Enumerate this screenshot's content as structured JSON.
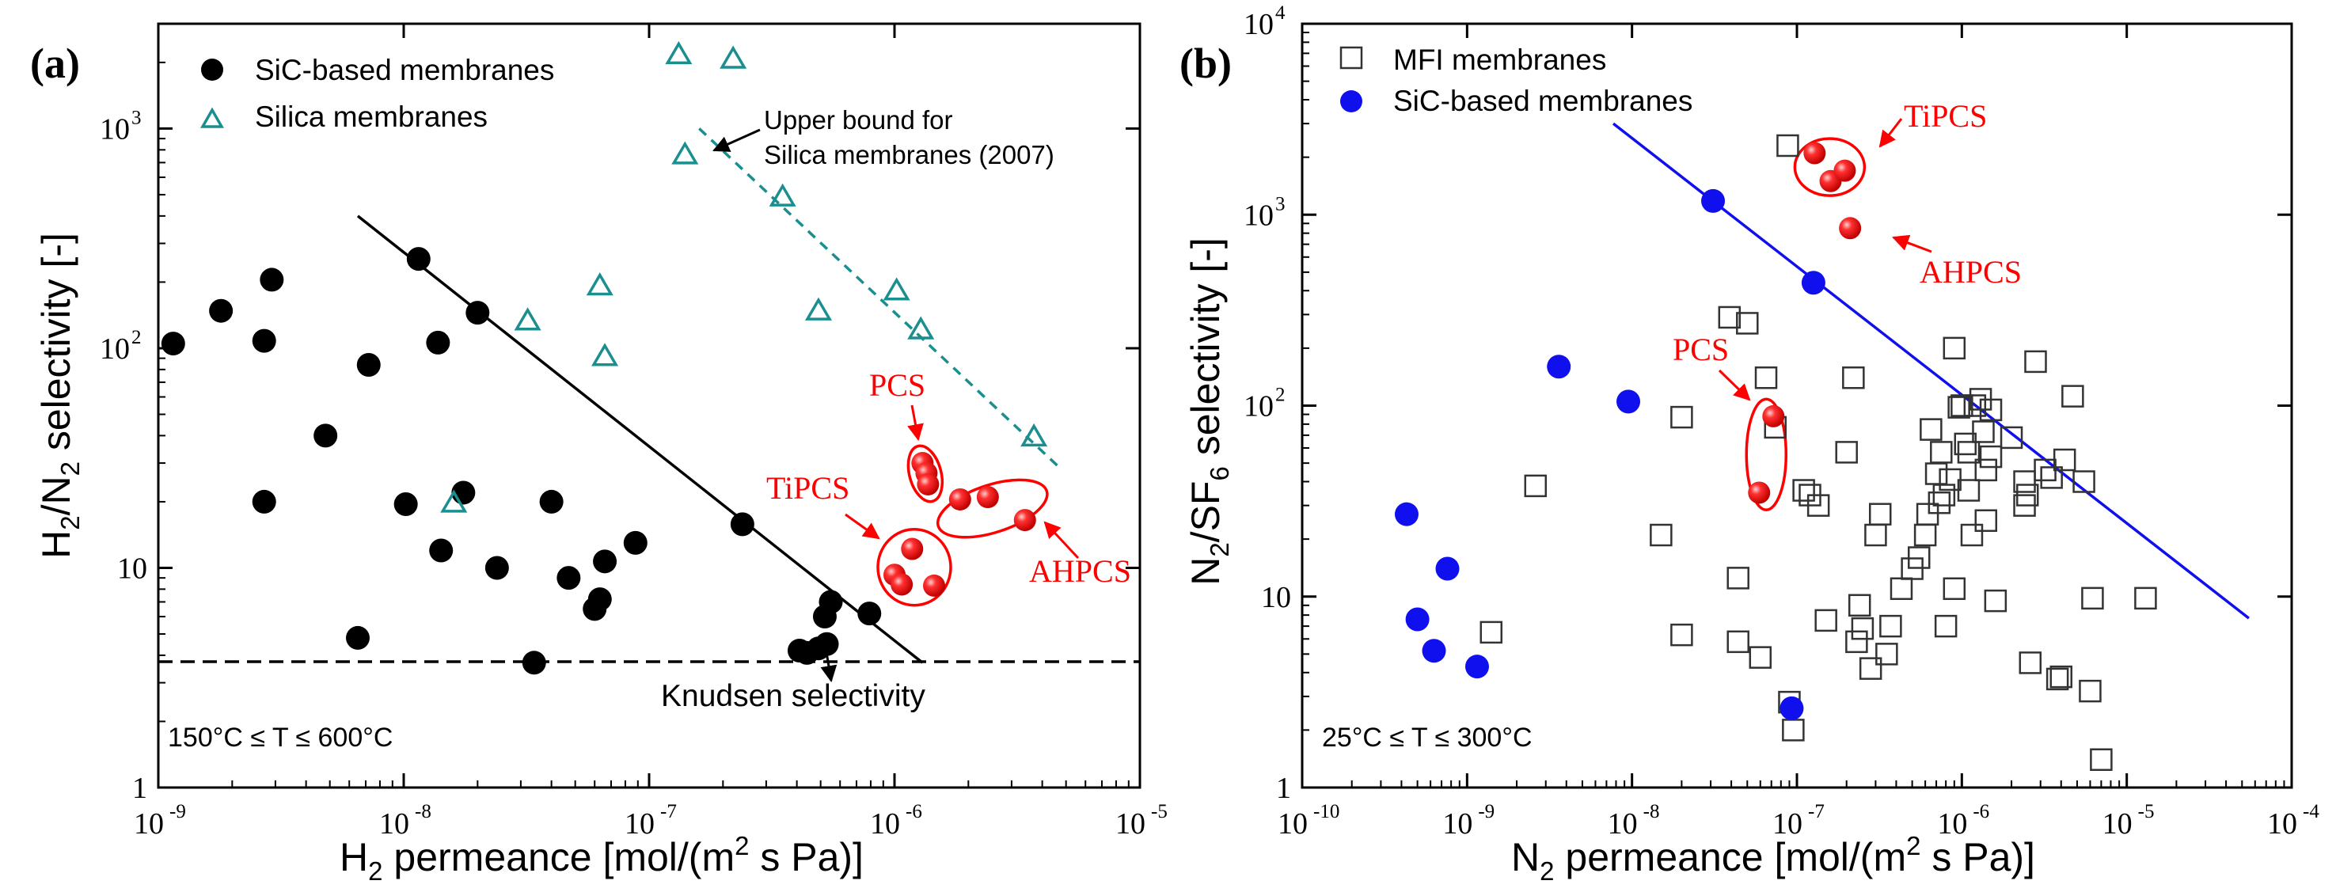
{
  "chart_data": [
    {
      "type": "scatter",
      "panel_label": "(a)",
      "x_scale": "log",
      "y_scale": "log",
      "xlim": [
        1e-09,
        1e-05
      ],
      "ylim": [
        1,
        3000
      ],
      "x_ticks": [
        -9,
        -8,
        -7,
        -6,
        -5
      ],
      "y_ticks": [
        {
          "exp": 0,
          "label": "1"
        },
        {
          "exp": 1,
          "label": "10"
        },
        {
          "exp": 2,
          "label": "10",
          "sup": "2"
        },
        {
          "exp": 3,
          "label": "10",
          "sup": "3"
        }
      ],
      "xlabel": {
        "main": "H",
        "sub": "2",
        "rest": " permeance [mol/(m",
        "sup": "2",
        "tail": " s Pa)]"
      },
      "ylabel": {
        "a": "H",
        "sub1": "2",
        "b": "/N",
        "sub2": "2",
        "c": " selectivity [-]"
      },
      "legend": [
        "SiC-based membranes",
        "Silica membranes"
      ],
      "temperature_note": "150°C ≤ T ≤ 600°C",
      "series": [
        {
          "name": "SiC-based membranes",
          "marker": "filled-circle",
          "color": "#000000",
          "points": [
            [
              1.15e-09,
              105
            ],
            [
              1.8e-09,
              148
            ],
            [
              2.7e-09,
              108
            ],
            [
              2.9e-09,
              205
            ],
            [
              2.7e-09,
              20
            ],
            [
              4.8e-09,
              40
            ],
            [
              7.2e-09,
              84
            ],
            [
              6.5e-09,
              4.8
            ],
            [
              1.02e-08,
              19.5
            ],
            [
              1.15e-08,
              255
            ],
            [
              1.38e-08,
              106
            ],
            [
              1.42e-08,
              12
            ],
            [
              1.75e-08,
              22
            ],
            [
              2e-08,
              145
            ],
            [
              2.4e-08,
              10
            ],
            [
              3.4e-08,
              3.7
            ],
            [
              4e-08,
              20
            ],
            [
              4.7e-08,
              9
            ],
            [
              6e-08,
              6.5
            ],
            [
              6.3e-08,
              7.2
            ],
            [
              6.6e-08,
              10.7
            ],
            [
              8.8e-08,
              13
            ],
            [
              2.4e-07,
              15.8
            ],
            [
              4.1e-07,
              4.2
            ],
            [
              4.4e-07,
              4.1
            ],
            [
              4.9e-07,
              4.3
            ],
            [
              5.2e-07,
              6
            ],
            [
              5.3e-07,
              4.5
            ],
            [
              5.5e-07,
              7
            ],
            [
              7.9e-07,
              6.2
            ]
          ]
        },
        {
          "name": "Silica membranes",
          "marker": "open-triangle",
          "color": "#1b8f8f",
          "points": [
            [
              1.32e-07,
              2200
            ],
            [
              2.2e-07,
              2100
            ],
            [
              1.4e-07,
              770
            ],
            [
              3.5e-07,
              495
            ],
            [
              3.2e-08,
              135
            ],
            [
              6.3e-08,
              195
            ],
            [
              6.6e-08,
              93
            ],
            [
              4.9e-07,
              150
            ],
            [
              1.02e-06,
              185
            ],
            [
              1.28e-06,
              123
            ],
            [
              1.6e-08,
              20
            ],
            [
              3.7e-06,
              40
            ]
          ]
        },
        {
          "name": "PCS",
          "marker": "red-sphere",
          "color": "#ff0000",
          "points": [
            [
              1.3e-06,
              30
            ],
            [
              1.35e-06,
              27
            ],
            [
              1.37e-06,
              24
            ]
          ]
        },
        {
          "name": "AHPCS",
          "marker": "red-sphere",
          "color": "#ff0000",
          "points": [
            [
              1.85e-06,
              20.5
            ],
            [
              2.4e-06,
              21
            ],
            [
              3.4e-06,
              16.5
            ]
          ]
        },
        {
          "name": "TiPCS",
          "marker": "red-sphere",
          "color": "#ff0000",
          "points": [
            [
              1e-06,
              9.3
            ],
            [
              1.07e-06,
              8.4
            ],
            [
              1.18e-06,
              12.2
            ],
            [
              1.45e-06,
              8.3
            ]
          ]
        }
      ],
      "lines": [
        {
          "name": "SiC trend",
          "style": "solid",
          "color": "#000000",
          "points": [
            [
              6.5e-09,
              400
            ],
            [
              1.3e-06,
              3.7
            ]
          ]
        },
        {
          "name": "Upper bound for Silica membranes (2007)",
          "style": "dashed",
          "color": "#1b8f8f",
          "points": [
            [
              1.6e-07,
              1000
            ],
            [
              4.8e-06,
              28
            ]
          ]
        },
        {
          "name": "Knudsen selectivity",
          "style": "dashed",
          "color": "#000000",
          "points": [
            [
              1e-09,
              3.74
            ],
            [
              1e-05,
              3.74
            ]
          ]
        }
      ],
      "annotations": {
        "upper_bound_1": "Upper bound for",
        "upper_bound_2": "Silica membranes (2007)",
        "knudsen": "Knudsen selectivity",
        "pcs": "PCS",
        "tipcs": "TiPCS",
        "ahpcs": "AHPCS"
      }
    },
    {
      "type": "scatter",
      "panel_label": "(b)",
      "x_scale": "log",
      "y_scale": "log",
      "xlim": [
        1e-10,
        0.0001
      ],
      "ylim": [
        1,
        10000
      ],
      "x_ticks": [
        -10,
        -9,
        -8,
        -7,
        -6,
        -5,
        -4
      ],
      "y_ticks": [
        {
          "exp": 0,
          "label": "1"
        },
        {
          "exp": 1,
          "label": "10"
        },
        {
          "exp": 2,
          "label": "10",
          "sup": "2"
        },
        {
          "exp": 3,
          "label": "10",
          "sup": "3"
        },
        {
          "exp": 4,
          "label": "10",
          "sup": "4"
        }
      ],
      "xlabel": {
        "main": "N",
        "sub": "2",
        "rest": " permeance [mol/(m",
        "sup": "2",
        "tail": " s Pa)]"
      },
      "ylabel": {
        "a": "N",
        "sub1": "2",
        "b": "/SF",
        "sub2": "6",
        "c": " selectivity [-]"
      },
      "legend": [
        "MFI membranes",
        "SiC-based membranes"
      ],
      "temperature_note": "25°C ≤ T ≤ 300°C",
      "series": [
        {
          "name": "MFI membranes",
          "marker": "open-square",
          "color": "#333333",
          "points": [
            [
              1.4e-09,
              6.5
            ],
            [
              2.6e-09,
              38
            ],
            [
              1.5e-08,
              21
            ],
            [
              2e-08,
              87
            ],
            [
              2e-08,
              6.3
            ],
            [
              3.9e-08,
              290
            ],
            [
              4.4e-08,
              12.5
            ],
            [
              4.4e-08,
              5.8
            ],
            [
              5e-08,
              270
            ],
            [
              6e-08,
              4.8
            ],
            [
              6.5e-08,
              140
            ],
            [
              7.4e-08,
              77
            ],
            [
              8.8e-08,
              2300
            ],
            [
              9e-08,
              2.8
            ],
            [
              9.5e-08,
              2.0
            ],
            [
              1.1e-07,
              36
            ],
            [
              1.2e-07,
              34
            ],
            [
              1.35e-07,
              30
            ],
            [
              1.5e-07,
              7.5
            ],
            [
              2e-07,
              57
            ],
            [
              2.2e-07,
              140
            ],
            [
              2.3e-07,
              5.8
            ],
            [
              2.4e-07,
              9
            ],
            [
              2.5e-07,
              6.8
            ],
            [
              2.8e-07,
              4.2
            ],
            [
              3e-07,
              21
            ],
            [
              3.2e-07,
              27
            ],
            [
              3.5e-07,
              5.0
            ],
            [
              3.7e-07,
              7.0
            ],
            [
              4.3e-07,
              11
            ],
            [
              5e-07,
              14
            ],
            [
              5.5e-07,
              16
            ],
            [
              6e-07,
              21
            ],
            [
              6.2e-07,
              27
            ],
            [
              6.5e-07,
              75
            ],
            [
              7e-07,
              44
            ],
            [
              7.3e-07,
              31
            ],
            [
              7.5e-07,
              57
            ],
            [
              7.8e-07,
              34
            ],
            [
              8e-07,
              7.0
            ],
            [
              8.5e-07,
              41
            ],
            [
              9e-07,
              11
            ],
            [
              9e-07,
              200
            ],
            [
              9.6e-07,
              98
            ],
            [
              1e-06,
              100
            ],
            [
              1.05e-06,
              63
            ],
            [
              1.1e-06,
              36
            ],
            [
              1.1e-06,
              57
            ],
            [
              1.15e-06,
              21
            ],
            [
              1.2e-06,
              100
            ],
            [
              1.3e-06,
              108
            ],
            [
              1.35e-06,
              73
            ],
            [
              1.4e-06,
              46
            ],
            [
              1.4e-06,
              25
            ],
            [
              1.5e-06,
              95
            ],
            [
              1.5e-06,
              54
            ],
            [
              1.6e-06,
              9.5
            ],
            [
              2e-06,
              68
            ],
            [
              2.4e-06,
              40
            ],
            [
              2.4e-06,
              30
            ],
            [
              2.5e-06,
              34
            ],
            [
              2.6e-06,
              4.5
            ],
            [
              2.8e-06,
              170
            ],
            [
              3.2e-06,
              46
            ],
            [
              3.5e-06,
              42
            ],
            [
              3.8e-06,
              3.7
            ],
            [
              4e-06,
              3.8
            ],
            [
              4.2e-06,
              52
            ],
            [
              4.7e-06,
              112
            ],
            [
              5.5e-06,
              40
            ],
            [
              6e-06,
              3.2
            ],
            [
              6.2e-06,
              9.8
            ],
            [
              7e-06,
              1.4
            ],
            [
              1.3e-05,
              9.8
            ]
          ]
        },
        {
          "name": "SiC-based membranes",
          "marker": "filled-circle",
          "color": "#1010ee",
          "points": [
            [
              4.3e-10,
              27
            ],
            [
              5e-10,
              7.6
            ],
            [
              6.3e-10,
              5.2
            ],
            [
              7.6e-10,
              14
            ],
            [
              1.15e-09,
              4.3
            ],
            [
              3.6e-09,
              160
            ],
            [
              9.5e-09,
              105
            ],
            [
              3.1e-08,
              1180
            ],
            [
              9.3e-08,
              2.6
            ],
            [
              1.26e-07,
              440
            ]
          ]
        },
        {
          "name": "TiPCS",
          "marker": "red-sphere",
          "color": "#ff0000",
          "points": [
            [
              1.28e-07,
              2100
            ],
            [
              1.6e-07,
              1500
            ],
            [
              1.95e-07,
              1700
            ]
          ]
        },
        {
          "name": "AHPCS",
          "marker": "red-sphere",
          "color": "#ff0000",
          "points": [
            [
              2.1e-07,
              850
            ]
          ]
        },
        {
          "name": "PCS",
          "marker": "red-sphere",
          "color": "#ff0000",
          "points": [
            [
              7.2e-08,
              88
            ],
            [
              5.9e-08,
              35
            ]
          ]
        }
      ],
      "lines": [
        {
          "name": "SiC trend",
          "style": "solid",
          "color": "#1010ee",
          "points": [
            [
              7.7e-09,
              3000
            ],
            [
              5.5e-05,
              7.7
            ]
          ]
        }
      ],
      "annotations": {
        "tipcs": "TiPCS",
        "ahpcs": "AHPCS",
        "pcs": "PCS"
      }
    }
  ]
}
